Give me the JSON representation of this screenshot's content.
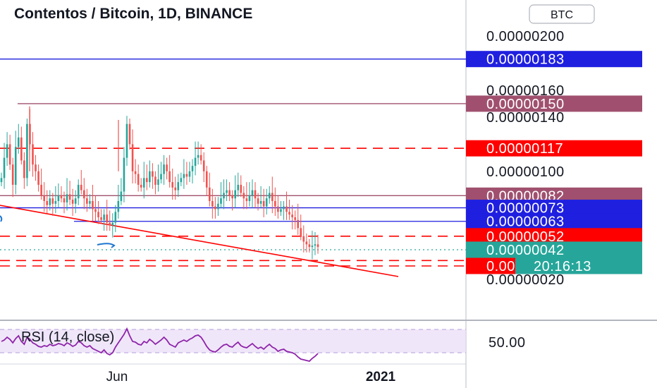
{
  "header": {
    "title": "Contentos / Bitcoin, 1D, BINANCE",
    "currency_button": "BTC"
  },
  "chart_data": {
    "type": "candlestick",
    "title": "Contentos / Bitcoin, 1D, BINANCE",
    "symbol": "COS/BTC",
    "timeframe": "1D",
    "exchange": "BINANCE",
    "y_axis_ticks": [
      "0.00000200",
      "0.00000160",
      "0.00000140",
      "0.00000100",
      "0.00000020"
    ],
    "x_axis_ticks": [
      "Jun",
      "2021"
    ],
    "ylim": [
      2e-07,
      2.1e-06
    ],
    "close_series": [
      95,
      110,
      120,
      105,
      90,
      118,
      125,
      108,
      95,
      135,
      120,
      105,
      100,
      90,
      82,
      78,
      75,
      80,
      76,
      78,
      82,
      80,
      77,
      83,
      79,
      76,
      80,
      90,
      86,
      80,
      76,
      78,
      72,
      70,
      66,
      64,
      68,
      62,
      60,
      62,
      70,
      78,
      85,
      110,
      135,
      120,
      100,
      98,
      90,
      88,
      95,
      92,
      100,
      96,
      90,
      94,
      98,
      105,
      100,
      92,
      88,
      86,
      92,
      95,
      98,
      96,
      100,
      104,
      110,
      112,
      108,
      100,
      88,
      78,
      74,
      72,
      76,
      80,
      84,
      86,
      82,
      80,
      86,
      90,
      84,
      80,
      78,
      82,
      86,
      80,
      76,
      78,
      74,
      80,
      84,
      78,
      74,
      70,
      72,
      74,
      70,
      68,
      66,
      64,
      58,
      52,
      48,
      46,
      44,
      45,
      46,
      44
    ],
    "horizontal_levels": [
      {
        "label": "0.00000183",
        "value": 1.83e-06,
        "style": "solid",
        "color": "#1f1fe0"
      },
      {
        "label": "0.00000150",
        "value": 1.5e-06,
        "style": "solid",
        "color": "#a0506e"
      },
      {
        "label": "0.00000117",
        "value": 1.17e-06,
        "style": "dashed",
        "color": "#ff0000"
      },
      {
        "label": "0.00000082",
        "value": 8.2e-07,
        "style": "solid",
        "color": "#a0506e"
      },
      {
        "label": "0.00000073",
        "value": 7.3e-07,
        "style": "solid",
        "color": "#1f1fe0"
      },
      {
        "label": "0.00000063",
        "value": 6.3e-07,
        "style": "solid",
        "color": "#1f1fe0"
      },
      {
        "label": "0.00000052",
        "value": 5.2e-07,
        "style": "dashed",
        "color": "#ff0000"
      },
      {
        "label": "0.00000034",
        "value": 3.4e-07,
        "style": "dashed",
        "color": "#ff0000"
      },
      {
        "label": "0.00000030",
        "value": 3e-07,
        "style": "dashed",
        "color": "#ff0000"
      }
    ],
    "current_price": {
      "label": "0.00000042",
      "value": 4.2e-07,
      "color": "#26a69a"
    },
    "countdown": "20:16:13",
    "trendline": {
      "color": "#ff0000"
    },
    "indicator": {
      "name": "RSI (14, close)",
      "level_label": "50.00",
      "band_color": "#e9dcf7",
      "line_color": "#8e24aa",
      "values": [
        52,
        54,
        58,
        55,
        50,
        56,
        60,
        52,
        48,
        58,
        55,
        50,
        48,
        45,
        44,
        46,
        45,
        48,
        46,
        47,
        49,
        48,
        46,
        50,
        48,
        45,
        47,
        52,
        50,
        46,
        44,
        46,
        42,
        40,
        38,
        36,
        40,
        35,
        33,
        36,
        44,
        50,
        56,
        62,
        70,
        60,
        52,
        51,
        48,
        47,
        52,
        50,
        55,
        52,
        48,
        51,
        54,
        58,
        54,
        48,
        46,
        44,
        50,
        52,
        54,
        52,
        55,
        57,
        60,
        61,
        58,
        52,
        45,
        40,
        38,
        37,
        40,
        44,
        47,
        48,
        45,
        44,
        48,
        51,
        46,
        44,
        43,
        46,
        49,
        45,
        42,
        44,
        41,
        45,
        48,
        44,
        42,
        38,
        40,
        41,
        38,
        37,
        36,
        34,
        30,
        27,
        26,
        25,
        24,
        28,
        31,
        35
      ]
    },
    "colors": {
      "up": "#26a69a",
      "down": "#ef5350"
    }
  }
}
